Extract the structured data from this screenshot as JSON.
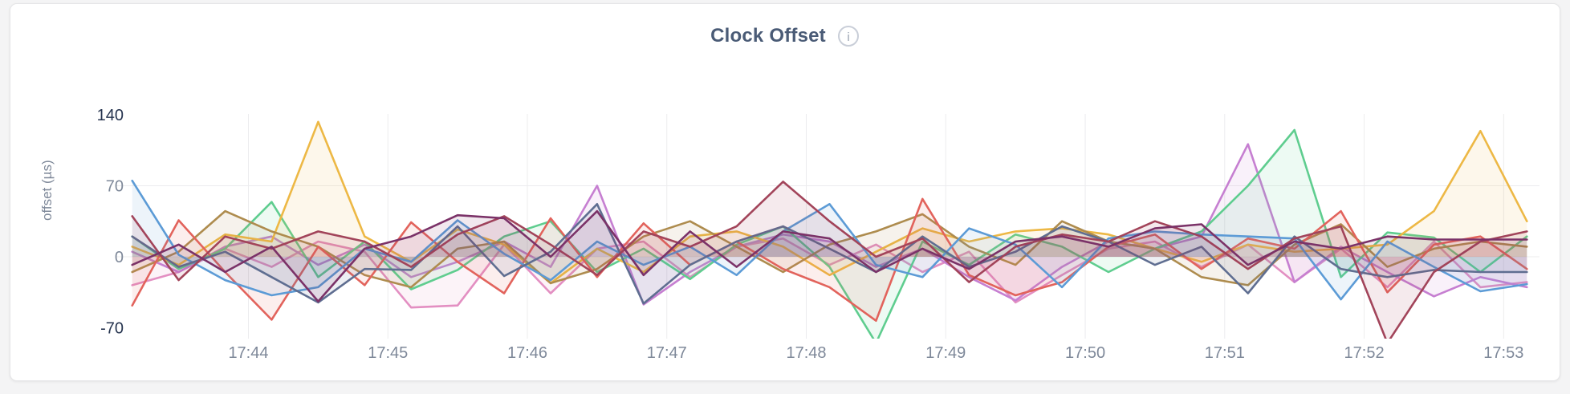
{
  "card": {
    "type": "metric-panel"
  },
  "chart": {
    "title": "Clock Offset",
    "ylabel": "offset (µs)",
    "info_icon_glyph": "i"
  },
  "colors": {
    "page_background": "#f4f4f5",
    "card_background": "#ffffff",
    "card_border": "#e5e5e7",
    "title_text": "#4a5b76",
    "tick_text_gray": "#7e8899",
    "tick_text_dark": "#26344f",
    "gridline": "#ececee",
    "info_icon_border": "#c9ced8",
    "info_icon_glyph": "#9aa3b2"
  },
  "chart_data": {
    "type": "line",
    "title": "Clock Offset",
    "xlabel": "",
    "ylabel": "offset (µs)",
    "legend": "none",
    "grid": "on",
    "ylim": [
      -79,
      141
    ],
    "y_ticks": [
      140,
      70,
      0,
      -70
    ],
    "y_tick_dark": [
      true,
      false,
      false,
      true
    ],
    "y_gridlines": [
      70,
      0
    ],
    "x_tick_labels": [
      "17:44",
      "17:45",
      "17:46",
      "17:47",
      "17:48",
      "17:49",
      "17:50",
      "17:51",
      "17:52",
      "17:53"
    ],
    "x_tick_minutes": [
      44,
      45,
      46,
      47,
      48,
      49,
      50,
      51,
      52,
      53
    ],
    "axis": {
      "x_min_minutes": 43.157,
      "x_max_minutes": 53.257,
      "start_minutes": 43.1667,
      "interval_seconds": 20,
      "points_per_series": 31,
      "start_time_label": "17:43:10",
      "end_time_label": "17:53:10"
    },
    "units": "microseconds",
    "series": [
      {
        "name": "pink",
        "color": "#E38FC2",
        "values": [
          -28,
          -15,
          8,
          -10,
          15,
          5,
          -50,
          -48,
          12,
          -36,
          8,
          15,
          -20,
          10,
          18,
          -8,
          12,
          -15,
          5,
          -45,
          -18,
          8,
          15,
          -10,
          12,
          -25,
          8,
          -30,
          15,
          -30,
          -25
        ]
      },
      {
        "name": "orchid",
        "color": "#C67FD1",
        "values": [
          5,
          -15,
          10,
          20,
          -8,
          12,
          -20,
          -5,
          15,
          -10,
          70,
          -47,
          -15,
          10,
          22,
          15,
          -10,
          8,
          -20,
          -43,
          -10,
          15,
          8,
          20,
          111,
          -25,
          10,
          -15,
          -39,
          -20,
          -30
        ]
      },
      {
        "name": "green",
        "color": "#5FCD8F",
        "values": [
          20,
          -12,
          8,
          54,
          -20,
          15,
          -32,
          -13,
          20,
          35,
          -15,
          8,
          -22,
          12,
          30,
          -10,
          -85,
          15,
          -8,
          22,
          10,
          -15,
          8,
          25,
          70,
          125,
          -20,
          24,
          19,
          -15,
          20
        ]
      },
      {
        "name": "gold",
        "color": "#EDB845",
        "values": [
          10,
          -8,
          22,
          15,
          133,
          20,
          -5,
          27,
          12,
          -26,
          8,
          -15,
          20,
          25,
          10,
          -18,
          5,
          28,
          15,
          25,
          28,
          22,
          8,
          -5,
          12,
          5,
          8,
          12,
          45,
          124,
          35
        ]
      },
      {
        "name": "khaki",
        "color": "#AE8C4E",
        "values": [
          -15,
          5,
          45,
          25,
          10,
          -18,
          -30,
          8,
          15,
          -26,
          -12,
          20,
          35,
          10,
          -15,
          12,
          25,
          42,
          10,
          -8,
          35,
          15,
          8,
          -20,
          -28,
          12,
          32,
          -10,
          8,
          15,
          10
        ]
      },
      {
        "name": "coral",
        "color": "#E2635C",
        "values": [
          -48,
          36,
          -15,
          -62,
          10,
          -28,
          34,
          -5,
          -36,
          38,
          -20,
          33,
          -8,
          15,
          -12,
          -30,
          -63,
          57,
          -18,
          -38,
          -25,
          10,
          22,
          -12,
          18,
          8,
          45,
          -35,
          12,
          20,
          -12
        ]
      },
      {
        "name": "blue",
        "color": "#5C9BD6",
        "values": [
          75,
          2,
          -23,
          -38,
          -30,
          8,
          -5,
          36,
          3,
          -23,
          15,
          -8,
          10,
          -18,
          25,
          52,
          -8,
          -20,
          28,
          12,
          -30,
          18,
          25,
          22,
          20,
          18,
          -42,
          15,
          -10,
          -34,
          -27
        ]
      },
      {
        "name": "slate",
        "color": "#5F6E91",
        "values": [
          20,
          -10,
          5,
          -20,
          -45,
          -12,
          -13,
          30,
          -19,
          5,
          52,
          -46,
          -8,
          15,
          30,
          8,
          -15,
          20,
          -10,
          5,
          30,
          15,
          -8,
          10,
          -36,
          20,
          -12,
          -20,
          -13,
          -15,
          -15
        ]
      },
      {
        "name": "maroon",
        "color": "#A2445A",
        "values": [
          40,
          -23,
          20,
          8,
          25,
          15,
          -10,
          22,
          40,
          12,
          -18,
          25,
          10,
          30,
          74,
          35,
          0,
          18,
          -25,
          10,
          22,
          15,
          35,
          20,
          -12,
          18,
          30,
          -85,
          -15,
          15,
          25
        ]
      },
      {
        "name": "purple",
        "color": "#7B3268",
        "values": [
          -8,
          12,
          -15,
          10,
          -44,
          8,
          20,
          41,
          38,
          0,
          45,
          -18,
          25,
          -10,
          25,
          18,
          -15,
          8,
          -12,
          15,
          20,
          10,
          28,
          32,
          -8,
          15,
          8,
          20,
          17,
          17,
          17
        ]
      }
    ]
  }
}
